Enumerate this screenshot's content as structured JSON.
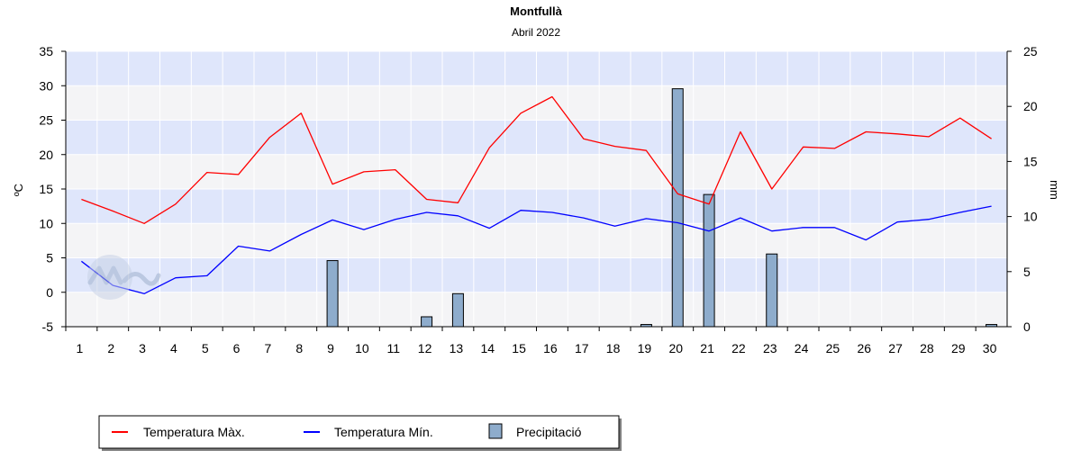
{
  "chart_data": {
    "type": "line",
    "title": "Montfullà",
    "subtitle": "Abril 2022",
    "xlabel": "",
    "ylabel_left": "ºC",
    "ylabel_right": "mm",
    "ylim_left": [
      -5,
      35
    ],
    "yticks_left": [
      -5,
      0,
      5,
      10,
      15,
      20,
      25,
      30,
      35
    ],
    "ylim_right": [
      0,
      25
    ],
    "yticks_right": [
      0,
      5,
      10,
      15,
      20,
      25
    ],
    "categories": [
      "1",
      "2",
      "3",
      "4",
      "5",
      "6",
      "7",
      "8",
      "9",
      "10",
      "11",
      "12",
      "13",
      "14",
      "15",
      "16",
      "17",
      "18",
      "19",
      "20",
      "21",
      "22",
      "23",
      "24",
      "25",
      "26",
      "27",
      "28",
      "29",
      "30"
    ],
    "grid": true,
    "legend_position": "bottom-left",
    "series": [
      {
        "name": "Temperatura Màx.",
        "type": "line",
        "axis": "left",
        "color": "#ff0000",
        "values": [
          13.5,
          11.8,
          10.0,
          12.8,
          17.4,
          17.1,
          22.5,
          26.0,
          15.7,
          17.5,
          17.8,
          13.5,
          13.0,
          21.0,
          26.0,
          28.4,
          22.3,
          21.2,
          20.6,
          14.3,
          12.8,
          23.3,
          15.0,
          21.1,
          20.9,
          23.3,
          23.0,
          22.6,
          25.3,
          22.3
        ]
      },
      {
        "name": "Temperatura Mín.",
        "type": "line",
        "axis": "left",
        "color": "#0000ff",
        "values": [
          4.5,
          1.0,
          -0.2,
          2.1,
          2.4,
          6.7,
          6.0,
          8.4,
          10.5,
          9.1,
          10.6,
          11.6,
          11.1,
          9.3,
          11.9,
          11.6,
          10.8,
          9.6,
          10.7,
          10.1,
          8.9,
          10.8,
          8.9,
          9.4,
          9.4,
          7.6,
          10.2,
          10.6,
          11.6,
          12.5
        ]
      },
      {
        "name": "Precipitació",
        "type": "bar",
        "axis": "right",
        "color": "#8eaccc",
        "values": [
          0,
          0,
          0,
          0,
          0,
          0,
          0,
          0,
          6.0,
          0,
          0,
          0.9,
          3.0,
          0,
          0,
          0,
          0,
          0,
          0.2,
          21.6,
          12.0,
          0,
          6.6,
          0,
          0,
          0,
          0,
          0,
          0,
          0.2
        ]
      }
    ]
  }
}
